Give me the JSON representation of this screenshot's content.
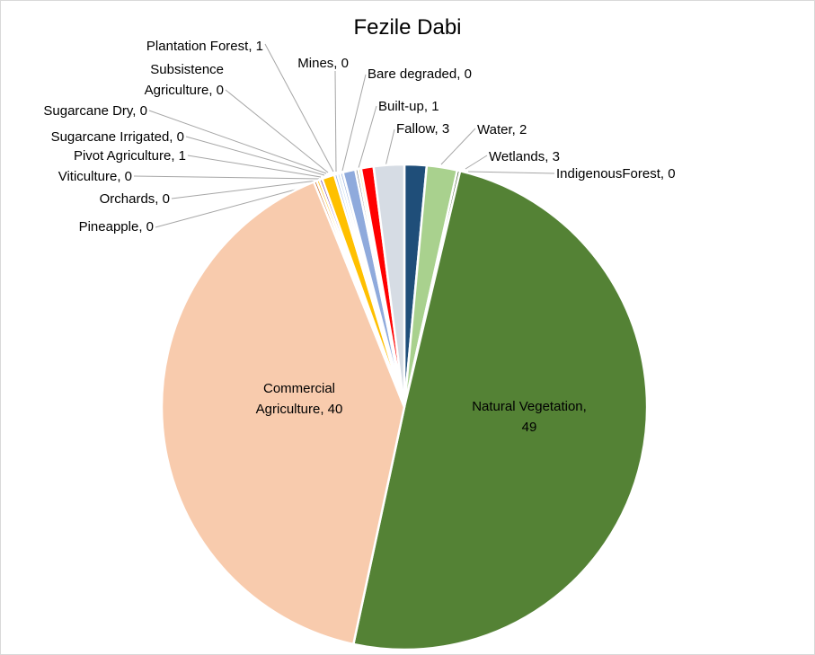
{
  "chart_data": {
    "type": "pie",
    "title": "Fezile Dabi",
    "slices": [
      {
        "name": "Water",
        "value": 2,
        "label": "Water, 2",
        "color": "#1f4e79"
      },
      {
        "name": "Wetlands",
        "value": 3,
        "label": "Wetlands, 3",
        "color": "#a9d18e"
      },
      {
        "name": "IndigenousForest",
        "value": 0,
        "label": "IndigenousForest, 0",
        "color": "#375623"
      },
      {
        "name": "Natural Vegetation",
        "value": 49,
        "label": "Natural Vegetation, 49",
        "color": "#548235"
      },
      {
        "name": "Commercial Agriculture",
        "value": 40,
        "label": "Commercial Agriculture, 40",
        "color": "#f8cbad"
      },
      {
        "name": "Pineapple",
        "value": 0,
        "label": "Pineapple, 0",
        "color": "#c55a11"
      },
      {
        "name": "Orchards",
        "value": 0,
        "label": "Orchards, 0",
        "color": "#ffc000"
      },
      {
        "name": "Viticulture",
        "value": 0,
        "label": "Viticulture, 0",
        "color": "#7030a0"
      },
      {
        "name": "Pivot Agriculture",
        "value": 1,
        "label": "Pivot  Agriculture, 1",
        "color": "#ffc000"
      },
      {
        "name": "Sugarcane Irrigated",
        "value": 0,
        "label": "Sugarcane Irrigated, 0",
        "color": "#8faadc"
      },
      {
        "name": "Sugarcane Dry",
        "value": 0,
        "label": "Sugarcane Dry, 0",
        "color": "#bdd7ee"
      },
      {
        "name": "Subsistence Agriculture",
        "value": 0,
        "label": "Subsistence Agriculture, 0",
        "color": "#8faadc"
      },
      {
        "name": "Plantation Forest",
        "value": 1,
        "label": "Plantation Forest, 1",
        "color": "#8faadc"
      },
      {
        "name": "Mines",
        "value": 0,
        "label": "Mines, 0",
        "color": "#7f7f7f"
      },
      {
        "name": "Bare degraded",
        "value": 0,
        "label": "Bare degraded, 0",
        "color": "#ffe699"
      },
      {
        "name": "Built-up",
        "value": 1,
        "label": "Built-up, 1",
        "color": "#ff0000"
      },
      {
        "name": "Fallow",
        "value": 3,
        "label": "Fallow, 3",
        "color": "#d6dce4"
      }
    ]
  }
}
